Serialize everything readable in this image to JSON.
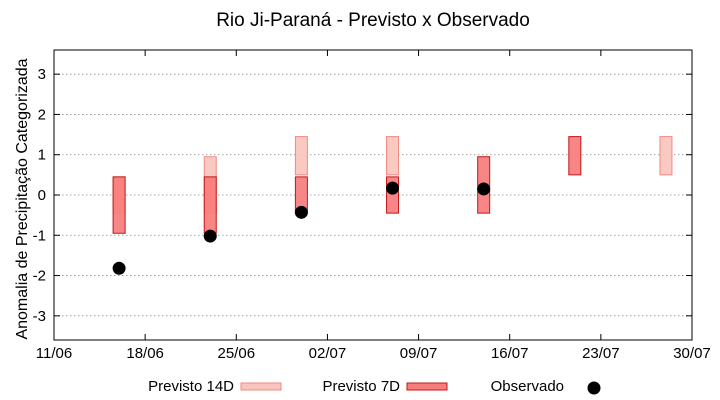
{
  "chart_data": {
    "type": "range-bar",
    "title": "Rio Ji-Paraná - Previsto x Observado",
    "xlabel": "",
    "ylabel": "Anomalia de Precipitação Categorizada",
    "ylim": [
      -3.6,
      3.6
    ],
    "yticks": [
      -3,
      -2,
      -1,
      0,
      1,
      2,
      3
    ],
    "ytick_labels": [
      "-3",
      "-2",
      "-1",
      "0",
      "1",
      "2",
      "3"
    ],
    "x_start": "2024-06-11",
    "x_end": "2024-06-30",
    "xticks": [
      "2024-06-11",
      "2024-06-18",
      "2024-06-25",
      "2024-07-02",
      "2024-07-09",
      "2024-07-16",
      "2024-07-23",
      "2024-07-30"
    ],
    "xtick_labels": [
      "11/06",
      "18/06",
      "25/06",
      "02/07",
      "09/07",
      "16/07",
      "23/07",
      "30/07"
    ],
    "grid": "y dotted",
    "legend_position": "bottom",
    "series": [
      {
        "name": "Previsto 14D",
        "kind": "range",
        "fill": "#f9c4bd",
        "stroke": "#f08a84",
        "data": [
          {
            "x": "2024-06-16",
            "low": -0.45,
            "high": 0.45
          },
          {
            "x": "2024-06-23",
            "low": -0.45,
            "high": 0.95
          },
          {
            "x": "2024-06-30",
            "low": 0.5,
            "high": 1.45
          },
          {
            "x": "2024-07-07",
            "low": 0.5,
            "high": 1.45
          },
          {
            "x": "2024-07-28",
            "low": 0.5,
            "high": 1.45
          }
        ]
      },
      {
        "name": "Previsto 7D",
        "kind": "range",
        "fill": "#f97c7c",
        "stroke": "#c01818",
        "data": [
          {
            "x": "2024-06-16",
            "low": -0.95,
            "high": 0.45
          },
          {
            "x": "2024-06-23",
            "low": -0.95,
            "high": 0.45
          },
          {
            "x": "2024-06-30",
            "low": -0.45,
            "high": 0.45
          },
          {
            "x": "2024-07-07",
            "low": -0.45,
            "high": 0.45
          },
          {
            "x": "2024-07-14",
            "low": -0.45,
            "high": 0.95
          },
          {
            "x": "2024-07-21",
            "low": 0.5,
            "high": 1.45
          }
        ]
      },
      {
        "name": "Observado",
        "kind": "point",
        "color": "#000000",
        "data": [
          {
            "x": "2024-06-16",
            "y": -1.82
          },
          {
            "x": "2024-06-23",
            "y": -1.02
          },
          {
            "x": "2024-06-30",
            "y": -0.43
          },
          {
            "x": "2024-07-07",
            "y": 0.17
          },
          {
            "x": "2024-07-14",
            "y": 0.15
          }
        ]
      }
    ]
  }
}
